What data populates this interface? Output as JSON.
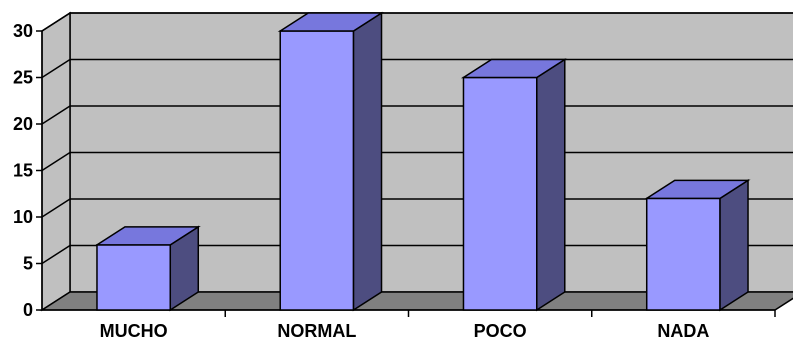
{
  "chart_data": {
    "type": "bar",
    "style": "3d-column",
    "categories": [
      "MUCHO",
      "NORMAL",
      "POCO",
      "NADA"
    ],
    "values": [
      7,
      30,
      25,
      12
    ],
    "title": "",
    "xlabel": "",
    "ylabel": "",
    "ylim": [
      0,
      30
    ],
    "yticks": [
      0,
      5,
      10,
      15,
      20,
      25,
      30
    ],
    "grid": true,
    "legend": "none",
    "colors": {
      "bar_front": "#9999ff",
      "bar_top": "#7777dd",
      "bar_side": "#4d4d80",
      "back_wall": "#c0c0c0",
      "floor": "#808080",
      "outline": "#000000"
    }
  }
}
